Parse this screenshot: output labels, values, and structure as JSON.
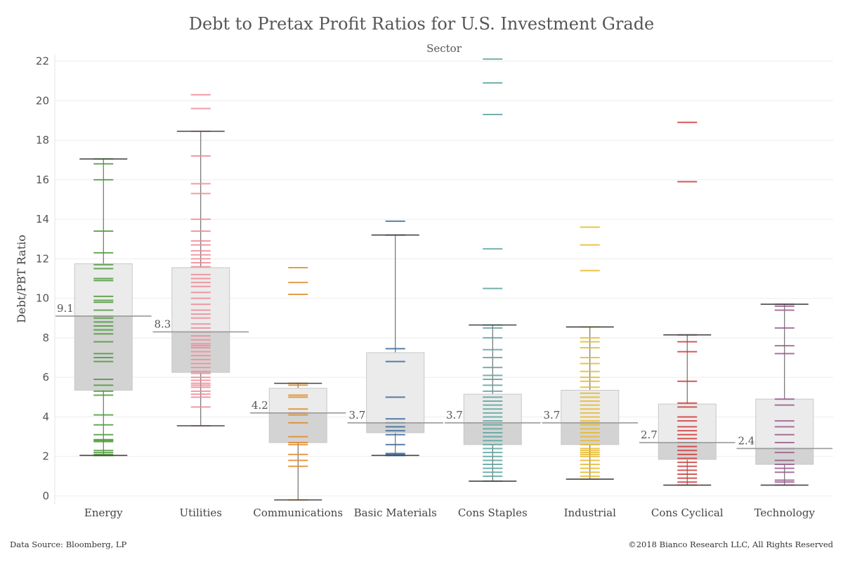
{
  "chart_data": {
    "type": "box",
    "title": "Debt to Pretax Profit Ratios for U.S. Investment Grade",
    "subtitle": "Sector",
    "ylabel": "Debt/PBT Ratio",
    "ylim": [
      0,
      22
    ],
    "yticks": [
      0,
      2,
      4,
      6,
      8,
      10,
      12,
      14,
      16,
      18,
      20,
      22
    ],
    "grid": "horizontal",
    "categories": [
      "Energy",
      "Utilities",
      "Communications",
      "Basic Materials",
      "Cons Staples",
      "Industrial",
      "Cons Cyclical",
      "Technology"
    ],
    "series": [
      {
        "category": "Energy",
        "color": "#4e9a3a",
        "q1": 5.35,
        "median": 9.1,
        "q3": 11.75,
        "whisker_low": 2.05,
        "whisker_high": 17.05,
        "median_label": "9.1",
        "points": [
          2.05,
          2.1,
          2.2,
          2.3,
          2.75,
          2.8,
          2.85,
          3.1,
          3.6,
          4.1,
          5.1,
          5.3,
          5.6,
          5.9,
          6.8,
          7.0,
          7.2,
          7.8,
          8.2,
          8.4,
          8.6,
          8.8,
          9.0,
          9.1,
          9.4,
          9.8,
          9.9,
          10.1,
          10.9,
          11.0,
          11.5,
          11.7,
          12.3,
          13.4,
          16.0,
          16.8,
          17.05
        ]
      },
      {
        "category": "Utilities",
        "color": "#ef8a96",
        "q1": 6.25,
        "median": 8.3,
        "q3": 11.55,
        "whisker_low": 3.55,
        "whisker_high": 18.45,
        "median_label": "8.3",
        "points": [
          3.55,
          4.5,
          5.0,
          5.15,
          5.3,
          5.5,
          5.6,
          5.7,
          5.85,
          6.0,
          6.2,
          6.3,
          6.5,
          6.7,
          6.9,
          7.1,
          7.3,
          7.5,
          7.6,
          7.7,
          7.9,
          8.1,
          8.3,
          8.5,
          8.7,
          9.0,
          9.2,
          9.4,
          9.7,
          10.0,
          10.3,
          10.6,
          10.8,
          11.0,
          11.2,
          11.6,
          11.8,
          12.0,
          12.2,
          12.4,
          12.7,
          12.9,
          13.4,
          14.0,
          15.3,
          15.8,
          17.2,
          18.45,
          19.6,
          20.3
        ]
      },
      {
        "category": "Communications",
        "color": "#e08a2c",
        "q1": 2.7,
        "median": 4.2,
        "q3": 5.45,
        "whisker_low": -0.2,
        "whisker_high": 5.7,
        "median_label": "4.2",
        "points": [
          -0.2,
          1.5,
          1.8,
          2.1,
          2.6,
          2.7,
          3.0,
          3.7,
          4.1,
          4.2,
          4.4,
          5.0,
          5.1,
          5.6,
          5.7,
          10.2,
          10.8,
          11.55
        ]
      },
      {
        "category": "Basic Materials",
        "color": "#3b6a9a",
        "q1": 3.2,
        "median": 3.7,
        "q3": 7.25,
        "whisker_low": 2.05,
        "whisker_high": 13.2,
        "median_label": "3.7",
        "points": [
          2.05,
          2.1,
          2.15,
          2.6,
          3.1,
          3.3,
          3.5,
          3.7,
          3.9,
          5.0,
          6.8,
          7.45,
          13.2,
          13.9
        ]
      },
      {
        "category": "Cons Staples",
        "color": "#5aa39e",
        "q1": 2.6,
        "median": 3.7,
        "q3": 5.15,
        "whisker_low": 0.75,
        "whisker_high": 8.65,
        "median_label": "3.7",
        "points": [
          0.75,
          1.0,
          1.2,
          1.4,
          1.6,
          1.8,
          2.0,
          2.2,
          2.4,
          2.6,
          2.8,
          3.0,
          3.2,
          3.4,
          3.6,
          3.8,
          4.0,
          4.2,
          4.4,
          4.6,
          4.8,
          5.0,
          5.3,
          5.6,
          5.9,
          6.1,
          6.5,
          7.0,
          7.4,
          8.0,
          8.5,
          8.65,
          10.5,
          12.5,
          19.3,
          20.9,
          22.1
        ]
      },
      {
        "category": "Industrial",
        "color": "#e6b82a",
        "q1": 2.6,
        "median": 3.7,
        "q3": 5.35,
        "whisker_low": 0.85,
        "whisker_high": 8.55,
        "median_label": "3.7",
        "points": [
          0.85,
          1.0,
          1.2,
          1.4,
          1.6,
          1.8,
          2.0,
          2.1,
          2.2,
          2.3,
          2.4,
          2.6,
          2.8,
          3.0,
          3.2,
          3.4,
          3.6,
          3.7,
          3.8,
          4.0,
          4.2,
          4.4,
          4.6,
          4.8,
          5.0,
          5.2,
          5.5,
          5.8,
          6.0,
          6.3,
          6.7,
          7.0,
          7.5,
          7.8,
          8.0,
          8.55,
          11.4,
          12.7,
          13.6
        ]
      },
      {
        "category": "Cons Cyclical",
        "color": "#cf3a3a",
        "q1": 1.85,
        "median": 2.7,
        "q3": 4.65,
        "whisker_low": 0.55,
        "whisker_high": 8.15,
        "median_label": "2.7",
        "points": [
          0.55,
          0.7,
          0.9,
          1.1,
          1.3,
          1.5,
          1.7,
          1.9,
          2.1,
          2.3,
          2.5,
          2.7,
          2.9,
          3.1,
          3.3,
          3.5,
          3.8,
          4.0,
          4.5,
          4.7,
          5.8,
          7.3,
          7.8,
          8.15,
          15.9,
          18.9
        ]
      },
      {
        "category": "Technology",
        "color": "#9a5a8e",
        "q1": 1.6,
        "median": 2.4,
        "q3": 4.9,
        "whisker_low": 0.55,
        "whisker_high": 9.7,
        "median_label": "2.4",
        "points": [
          0.55,
          0.7,
          0.8,
          1.2,
          1.4,
          1.6,
          1.8,
          2.2,
          2.4,
          2.7,
          3.1,
          3.5,
          3.8,
          4.6,
          4.9,
          7.2,
          7.6,
          8.5,
          9.4,
          9.6,
          9.7
        ]
      }
    ]
  },
  "footer": {
    "source": "Data Source: Bloomberg, LP",
    "copyright": "©2018 Bianco Research LLC, All Rights Reserved"
  }
}
